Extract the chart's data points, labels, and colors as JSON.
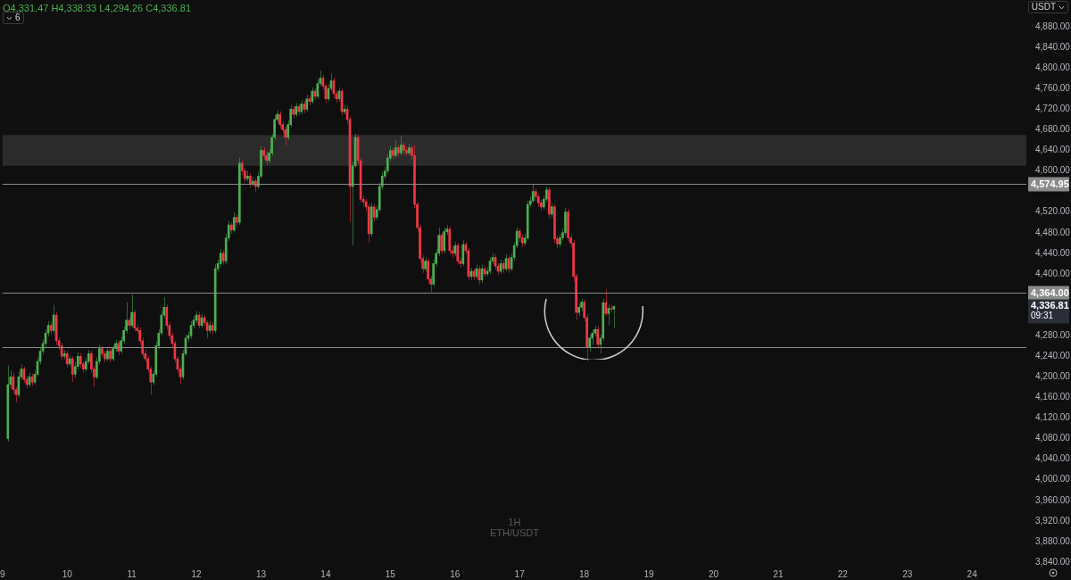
{
  "chart_data": {
    "type": "candlestick",
    "title": "ETH/USDT",
    "subtitle": "1H",
    "annotations": [
      "O4,331.47 H4,338.33 L4,294.26 C4,336.81",
      "6",
      "USDT",
      "4,336.81",
      "09:31"
    ],
    "colors": [
      "#4caf50",
      "#4caf50",
      "#f23645",
      "#f23645",
      "#4caf50",
      "#4caf50",
      "#f23645",
      "#f23645",
      "#4caf50",
      "#f23645",
      "#4caf50",
      "#4caf50",
      "#4caf50",
      "#4caf50",
      "#4caf50",
      "#4caf50",
      "#f23645",
      "#4caf50",
      "#f23645",
      "#f23645",
      "#f23645",
      "#4caf50",
      "#f23645",
      "#4caf50",
      "#f23645",
      "#4caf50",
      "#4caf50",
      "#f23645",
      "#f23645",
      "#4caf50",
      "#4caf50",
      "#f23645",
      "#f23645",
      "#4caf50",
      "#4caf50",
      "#f23645",
      "#f23645",
      "#4caf50",
      "#f23645",
      "#4caf50",
      "#4caf50",
      "#f23645",
      "#4caf50",
      "#4caf50",
      "#4caf50",
      "#f23645",
      "#4caf50",
      "#f23645",
      "#f23645",
      "#f23645",
      "#f23645",
      "#f23645",
      "#f23645",
      "#f23645",
      "#4caf50",
      "#4caf50",
      "#4caf50",
      "#4caf50",
      "#4caf50",
      "#f23645",
      "#f23645",
      "#f23645",
      "#f23645",
      "#f23645",
      "#f23645",
      "#4caf50",
      "#4caf50",
      "#4caf50",
      "#4caf50",
      "#4caf50",
      "#4caf50",
      "#f23645",
      "#4caf50",
      "#f23645",
      "#f23645",
      "#4caf50",
      "#f23645",
      "#4caf50",
      "#4caf50",
      "#4caf50",
      "#f23645",
      "#4caf50",
      "#4caf50",
      "#f23645",
      "#4caf50",
      "#f23645",
      "#4caf50",
      "#f23645",
      "#f23645",
      "#4caf50",
      "#f23645",
      "#4caf50",
      "#f23645",
      "#4caf50",
      "#4caf50",
      "#f23645",
      "#f23645",
      "#4caf50",
      "#4caf50",
      "#4caf50",
      "#4caf50",
      "#f23645",
      "#f23645",
      "#f23645",
      "#4caf50",
      "#4caf50",
      "#f23645",
      "#4caf50",
      "#f23645",
      "#4caf50",
      "#f23645",
      "#4caf50",
      "#f23645",
      "#4caf50",
      "#f23645",
      "#4caf50",
      "#4caf50",
      "#f23645",
      "#f23645",
      "#4caf50",
      "#4caf50",
      "#f23645",
      "#f23645",
      "#4caf50",
      "#f23645",
      "#4caf50",
      "#f23645",
      "#f23645",
      "#4caf50",
      "#4caf50",
      "#f23645",
      "#f23645",
      "#f23645",
      "#f23645",
      "#f23645",
      "#4caf50",
      "#f23645",
      "#4caf50",
      "#4caf50",
      "#4caf50",
      "#4caf50",
      "#4caf50",
      "#4caf50",
      "#f23645",
      "#4caf50",
      "#f23645",
      "#4caf50",
      "#f23645",
      "#f23645",
      "#4caf50",
      "#f23645",
      "#f23645",
      "#f23645",
      "#f23645",
      "#f23645",
      "#4caf50",
      "#f23645",
      "#f23645",
      "#4caf50",
      "#4caf50",
      "#4caf50",
      "#f23645",
      "#4caf50",
      "#4caf50",
      "#f23645",
      "#f23645",
      "#4caf50",
      "#f23645",
      "#f23645",
      "#4caf50",
      "#f23645",
      "#f23645",
      "#4caf50",
      "#f23645",
      "#4caf50",
      "#f23645",
      "#4caf50",
      "#f23645",
      "#4caf50",
      "#4caf50",
      "#4caf50",
      "#f23645",
      "#f23645",
      "#4caf50",
      "#f23645",
      "#4caf50",
      "#f23645",
      "#4caf50",
      "#4caf50",
      "#4caf50",
      "#f23645",
      "#f23645",
      "#4caf50",
      "#4caf50",
      "#4caf50",
      "#4caf50",
      "#f23645",
      "#f23645",
      "#f23645",
      "#4caf50",
      "#4caf50",
      "#f23645",
      "#4caf50",
      "#f23645",
      "#f23645",
      "#4caf50",
      "#4caf50",
      "#4caf50",
      "#f23645",
      "#f23645",
      "#f23645",
      "#f23645",
      "#4caf50",
      "#4caf50",
      "#f23645",
      "#f23645",
      "#4caf50",
      "#4caf50",
      "#4caf50",
      "#f23645",
      "#4caf50",
      "#4caf50",
      "#f23645",
      "#4caf50",
      "#f23645",
      "#4caf50"
    ],
    "xlim": [
      9,
      24.84
    ],
    "xticks": [
      9,
      10,
      11,
      12,
      13,
      14,
      15,
      16,
      17,
      18,
      19,
      20,
      21,
      22,
      23,
      24
    ],
    "ylim": [
      3840,
      4880
    ],
    "yticks": [
      {
        "value": 3840,
        "label": "3,840.00"
      },
      {
        "value": 3880,
        "label": "3,880.00"
      },
      {
        "value": 3920,
        "label": "3,920.00"
      },
      {
        "value": 3960,
        "label": "3,960.00"
      },
      {
        "value": 4000,
        "label": "4,000.00"
      },
      {
        "value": 4040,
        "label": "4,040.00"
      },
      {
        "value": 4080,
        "label": "4,080.00"
      },
      {
        "value": 4120,
        "label": "4,120.00"
      },
      {
        "value": 4160,
        "label": "4,160.00"
      },
      {
        "value": 4200,
        "label": "4,200.00"
      },
      {
        "value": 4240,
        "label": "4,240.00"
      },
      {
        "value": 4280,
        "label": "4,280.00"
      },
      {
        "value": 4400,
        "label": "4,400.00"
      },
      {
        "value": 4440,
        "label": "4,440.00"
      },
      {
        "value": 4480,
        "label": "4,480.00"
      },
      {
        "value": 4520,
        "label": "4,520.00"
      },
      {
        "value": 4600,
        "label": "4,600.00"
      },
      {
        "value": 4640,
        "label": "4,640.00"
      },
      {
        "value": 4680,
        "label": "4,680.00"
      },
      {
        "value": 4720,
        "label": "4,720.00"
      },
      {
        "value": 4760,
        "label": "4,760.00"
      },
      {
        "value": 4800,
        "label": "4,800.00"
      },
      {
        "value": 4840,
        "label": "4,840.00"
      },
      {
        "value": 4880,
        "label": "4,880.00"
      }
    ],
    "bands": [
      {
        "axis": "y",
        "from": 4610,
        "to": 4670,
        "color": "#2b2b2b"
      }
    ],
    "ref_lines": [
      {
        "axis": "y",
        "value": 4574.95,
        "label": "4,574.95",
        "color": "#8a8a8a"
      },
      {
        "axis": "y",
        "value": 4364,
        "label": "4,364.00",
        "color": "#8a8a8a"
      },
      {
        "axis": "y",
        "value": 4257,
        "label": null,
        "color": "#8a8a8a"
      }
    ],
    "x": [
      9.0833,
      9.125,
      9.1667,
      9.2083,
      9.25,
      9.2917,
      9.3333,
      9.375,
      9.4167,
      9.4583,
      9.5,
      9.5417,
      9.5833,
      9.625,
      9.6667,
      9.7083,
      9.75,
      9.7917,
      9.8333,
      9.875,
      9.9167,
      9.9583,
      10,
      10.0417,
      10.0833,
      10.125,
      10.1667,
      10.2083,
      10.25,
      10.2917,
      10.3333,
      10.375,
      10.4167,
      10.4583,
      10.5,
      10.5417,
      10.5833,
      10.625,
      10.6667,
      10.7083,
      10.75,
      10.7917,
      10.8333,
      10.875,
      10.9167,
      10.9583,
      11,
      11.0417,
      11.0833,
      11.125,
      11.1667,
      11.2083,
      11.25,
      11.2917,
      11.3333,
      11.375,
      11.4167,
      11.4583,
      11.5,
      11.5417,
      11.5833,
      11.625,
      11.6667,
      11.7083,
      11.75,
      11.7917,
      11.8333,
      11.875,
      11.9167,
      11.9583,
      12,
      12.0417,
      12.0833,
      12.125,
      12.1667,
      12.2083,
      12.25,
      12.2917,
      12.3333,
      12.375,
      12.4167,
      12.4583,
      12.5,
      12.5417,
      12.5833,
      12.625,
      12.6667,
      12.7083,
      12.75,
      12.7917,
      12.8333,
      12.875,
      12.9167,
      12.9583,
      13,
      13.0417,
      13.0833,
      13.125,
      13.1667,
      13.2083,
      13.25,
      13.2917,
      13.3333,
      13.375,
      13.4167,
      13.4583,
      13.5,
      13.5417,
      13.5833,
      13.625,
      13.6667,
      13.7083,
      13.75,
      13.7917,
      13.8333,
      13.875,
      13.9167,
      13.9583,
      14,
      14.0417,
      14.0833,
      14.125,
      14.1667,
      14.2083,
      14.25,
      14.2917,
      14.3333,
      14.375,
      14.4167,
      14.4583,
      14.5,
      14.5417,
      14.5833,
      14.625,
      14.6667,
      14.7083,
      14.75,
      14.7917,
      14.8333,
      14.875,
      14.9167,
      14.9583,
      15,
      15.0417,
      15.0833,
      15.125,
      15.1667,
      15.2083,
      15.25,
      15.2917,
      15.3333,
      15.375,
      15.4167,
      15.4583,
      15.5,
      15.5417,
      15.5833,
      15.625,
      15.6667,
      15.7083,
      15.75,
      15.7917,
      15.8333,
      15.875,
      15.9167,
      15.9583,
      16,
      16.0417,
      16.0833,
      16.125,
      16.1667,
      16.2083,
      16.25,
      16.2917,
      16.3333,
      16.375,
      16.4167,
      16.4583,
      16.5,
      16.5417,
      16.5833,
      16.625,
      16.6667,
      16.7083,
      16.75,
      16.7917,
      16.8333,
      16.875,
      16.9167,
      16.9583,
      17,
      17.0417,
      17.0833,
      17.125,
      17.1667,
      17.2083,
      17.25,
      17.2917,
      17.3333,
      17.375,
      17.4167,
      17.4583,
      17.5,
      17.5417,
      17.5833,
      17.625,
      17.6667,
      17.7083,
      17.75,
      17.7917,
      17.8333,
      17.875,
      17.9167,
      17.9583,
      18,
      18.0417,
      18.0833,
      18.125,
      18.1667,
      18.2083,
      18.25,
      18.2917,
      18.3333,
      18.375,
      18.4167,
      18.4583
    ],
    "ohlc": [
      [
        4080,
        4222,
        4074,
        4185
      ],
      [
        4185,
        4212,
        4176,
        4200
      ],
      [
        4200,
        4208,
        4168,
        4175
      ],
      [
        4175,
        4180,
        4150,
        4165
      ],
      [
        4165,
        4210,
        4160,
        4200
      ],
      [
        4200,
        4224,
        4195,
        4215
      ],
      [
        4215,
        4220,
        4188,
        4195
      ],
      [
        4195,
        4202,
        4178,
        4185
      ],
      [
        4185,
        4208,
        4180,
        4200
      ],
      [
        4200,
        4206,
        4183,
        4190
      ],
      [
        4190,
        4212,
        4185,
        4205
      ],
      [
        4205,
        4238,
        4200,
        4230
      ],
      [
        4230,
        4258,
        4224,
        4250
      ],
      [
        4250,
        4272,
        4244,
        4265
      ],
      [
        4265,
        4292,
        4258,
        4285
      ],
      [
        4285,
        4308,
        4278,
        4300
      ],
      [
        4300,
        4306,
        4282,
        4290
      ],
      [
        4290,
        4340,
        4285,
        4320
      ],
      [
        4320,
        4326,
        4262,
        4270
      ],
      [
        4270,
        4276,
        4252,
        4260
      ],
      [
        4260,
        4266,
        4232,
        4240
      ],
      [
        4240,
        4252,
        4234,
        4245
      ],
      [
        4245,
        4250,
        4218,
        4225
      ],
      [
        4225,
        4242,
        4220,
        4235
      ],
      [
        4235,
        4240,
        4190,
        4205
      ],
      [
        4205,
        4228,
        4198,
        4220
      ],
      [
        4220,
        4248,
        4214,
        4240
      ],
      [
        4240,
        4246,
        4218,
        4225
      ],
      [
        4225,
        4230,
        4208,
        4215
      ],
      [
        4215,
        4238,
        4210,
        4230
      ],
      [
        4230,
        4252,
        4225,
        4245
      ],
      [
        4245,
        4250,
        4208,
        4215
      ],
      [
        4215,
        4222,
        4180,
        4200
      ],
      [
        4200,
        4238,
        4195,
        4230
      ],
      [
        4230,
        4262,
        4225,
        4255
      ],
      [
        4255,
        4260,
        4238,
        4245
      ],
      [
        4245,
        4250,
        4228,
        4235
      ],
      [
        4235,
        4258,
        4230,
        4250
      ],
      [
        4250,
        4256,
        4228,
        4235
      ],
      [
        4235,
        4262,
        4230,
        4255
      ],
      [
        4255,
        4272,
        4248,
        4265
      ],
      [
        4265,
        4270,
        4242,
        4250
      ],
      [
        4250,
        4278,
        4245,
        4270
      ],
      [
        4270,
        4298,
        4264,
        4290
      ],
      [
        4290,
        4345,
        4285,
        4310
      ],
      [
        4310,
        4316,
        4292,
        4300
      ],
      [
        4300,
        4360,
        4295,
        4325
      ],
      [
        4325,
        4330,
        4288,
        4295
      ],
      [
        4295,
        4302,
        4284,
        4290
      ],
      [
        4290,
        4296,
        4262,
        4270
      ],
      [
        4270,
        4276,
        4238,
        4245
      ],
      [
        4245,
        4252,
        4228,
        4235
      ],
      [
        4235,
        4240,
        4208,
        4215
      ],
      [
        4215,
        4220,
        4165,
        4190
      ],
      [
        4190,
        4212,
        4184,
        4205
      ],
      [
        4205,
        4268,
        4200,
        4260
      ],
      [
        4260,
        4292,
        4254,
        4285
      ],
      [
        4285,
        4328,
        4280,
        4320
      ],
      [
        4320,
        4355,
        4314,
        4335
      ],
      [
        4335,
        4340,
        4292,
        4300
      ],
      [
        4300,
        4306,
        4272,
        4280
      ],
      [
        4280,
        4286,
        4258,
        4265
      ],
      [
        4265,
        4270,
        4228,
        4235
      ],
      [
        4235,
        4240,
        4208,
        4215
      ],
      [
        4215,
        4220,
        4185,
        4200
      ],
      [
        4200,
        4252,
        4195,
        4245
      ],
      [
        4245,
        4282,
        4240,
        4275
      ],
      [
        4275,
        4288,
        4268,
        4280
      ],
      [
        4280,
        4308,
        4274,
        4300
      ],
      [
        4300,
        4318,
        4294,
        4310
      ],
      [
        4310,
        4328,
        4304,
        4320
      ],
      [
        4320,
        4326,
        4294,
        4300
      ],
      [
        4300,
        4322,
        4295,
        4315
      ],
      [
        4315,
        4320,
        4298,
        4305
      ],
      [
        4305,
        4310,
        4275,
        4290
      ],
      [
        4290,
        4308,
        4284,
        4300
      ],
      [
        4300,
        4306,
        4282,
        4290
      ],
      [
        4290,
        4418,
        4285,
        4410
      ],
      [
        4410,
        4428,
        4404,
        4420
      ],
      [
        4420,
        4448,
        4414,
        4440
      ],
      [
        4440,
        4446,
        4418,
        4425
      ],
      [
        4425,
        4478,
        4420,
        4470
      ],
      [
        4470,
        4503,
        4464,
        4495
      ],
      [
        4495,
        4500,
        4478,
        4485
      ],
      [
        4485,
        4520,
        4480,
        4510
      ],
      [
        4510,
        4516,
        4492,
        4500
      ],
      [
        4500,
        4625,
        4495,
        4615
      ],
      [
        4615,
        4620,
        4592,
        4600
      ],
      [
        4600,
        4606,
        4578,
        4585
      ],
      [
        4585,
        4600,
        4580,
        4590
      ],
      [
        4590,
        4596,
        4568,
        4575
      ],
      [
        4575,
        4588,
        4570,
        4580
      ],
      [
        4580,
        4586,
        4560,
        4570
      ],
      [
        4570,
        4598,
        4565,
        4590
      ],
      [
        4590,
        4648,
        4585,
        4640
      ],
      [
        4640,
        4646,
        4622,
        4630
      ],
      [
        4630,
        4636,
        4612,
        4620
      ],
      [
        4620,
        4642,
        4615,
        4635
      ],
      [
        4635,
        4672,
        4630,
        4665
      ],
      [
        4665,
        4708,
        4660,
        4700
      ],
      [
        4700,
        4718,
        4694,
        4710
      ],
      [
        4710,
        4716,
        4682,
        4690
      ],
      [
        4690,
        4696,
        4672,
        4680
      ],
      [
        4680,
        4686,
        4650,
        4665
      ],
      [
        4665,
        4698,
        4660,
        4690
      ],
      [
        4690,
        4728,
        4685,
        4720
      ],
      [
        4720,
        4726,
        4702,
        4710
      ],
      [
        4710,
        4732,
        4705,
        4725
      ],
      [
        4725,
        4730,
        4708,
        4715
      ],
      [
        4715,
        4738,
        4710,
        4730
      ],
      [
        4730,
        4736,
        4712,
        4720
      ],
      [
        4720,
        4748,
        4715,
        4740
      ],
      [
        4740,
        4746,
        4728,
        4735
      ],
      [
        4735,
        4762,
        4730,
        4755
      ],
      [
        4755,
        4760,
        4738,
        4745
      ],
      [
        4745,
        4778,
        4740,
        4770
      ],
      [
        4770,
        4795,
        4765,
        4780
      ],
      [
        4780,
        4786,
        4758,
        4765
      ],
      [
        4765,
        4770,
        4732,
        4740
      ],
      [
        4740,
        4768,
        4735,
        4760
      ],
      [
        4760,
        4790,
        4755,
        4775
      ],
      [
        4775,
        4780,
        4742,
        4750
      ],
      [
        4750,
        4756,
        4732,
        4740
      ],
      [
        4740,
        4762,
        4735,
        4755
      ],
      [
        4755,
        4760,
        4708,
        4715
      ],
      [
        4715,
        4728,
        4710,
        4720
      ],
      [
        4720,
        4726,
        4692,
        4700
      ],
      [
        4700,
        4706,
        4500,
        4570
      ],
      [
        4570,
        4618,
        4455,
        4610
      ],
      [
        4610,
        4672,
        4605,
        4665
      ],
      [
        4665,
        4670,
        4612,
        4620
      ],
      [
        4620,
        4626,
        4538,
        4545
      ],
      [
        4545,
        4552,
        4532,
        4540
      ],
      [
        4540,
        4546,
        4522,
        4530
      ],
      [
        4530,
        4536,
        4460,
        4478
      ],
      [
        4478,
        4538,
        4472,
        4530
      ],
      [
        4530,
        4536,
        4502,
        4510
      ],
      [
        4510,
        4532,
        4505,
        4525
      ],
      [
        4525,
        4578,
        4520,
        4570
      ],
      [
        4570,
        4598,
        4565,
        4590
      ],
      [
        4590,
        4608,
        4584,
        4600
      ],
      [
        4600,
        4632,
        4595,
        4625
      ],
      [
        4625,
        4648,
        4620,
        4640
      ],
      [
        4640,
        4646,
        4622,
        4630
      ],
      [
        4630,
        4660,
        4625,
        4645
      ],
      [
        4645,
        4650,
        4628,
        4635
      ],
      [
        4635,
        4668,
        4630,
        4650
      ],
      [
        4650,
        4656,
        4632,
        4640
      ],
      [
        4640,
        4646,
        4628,
        4635
      ],
      [
        4635,
        4652,
        4630,
        4645
      ],
      [
        4645,
        4650,
        4622,
        4630
      ],
      [
        4630,
        4650,
        4528,
        4535
      ],
      [
        4535,
        4540,
        4482,
        4490
      ],
      [
        4490,
        4496,
        4422,
        4430
      ],
      [
        4430,
        4436,
        4402,
        4410
      ],
      [
        4410,
        4432,
        4405,
        4425
      ],
      [
        4425,
        4430,
        4382,
        4390
      ],
      [
        4390,
        4396,
        4365,
        4380
      ],
      [
        4380,
        4428,
        4375,
        4420
      ],
      [
        4420,
        4448,
        4414,
        4440
      ],
      [
        4440,
        4490,
        4435,
        4475
      ],
      [
        4475,
        4480,
        4438,
        4445
      ],
      [
        4445,
        4490,
        4440,
        4482
      ],
      [
        4482,
        4495,
        4476,
        4487
      ],
      [
        4487,
        4492,
        4438,
        4445
      ],
      [
        4445,
        4452,
        4432,
        4440
      ],
      [
        4440,
        4462,
        4434,
        4455
      ],
      [
        4455,
        4460,
        4418,
        4425
      ],
      [
        4425,
        4432,
        4412,
        4420
      ],
      [
        4420,
        4465,
        4415,
        4457
      ],
      [
        4457,
        4462,
        4438,
        4445
      ],
      [
        4445,
        4450,
        4388,
        4395
      ],
      [
        4395,
        4412,
        4388,
        4405
      ],
      [
        4405,
        4410,
        4388,
        4395
      ],
      [
        4395,
        4418,
        4390,
        4410
      ],
      [
        4410,
        4416,
        4380,
        4388
      ],
      [
        4388,
        4418,
        4382,
        4410
      ],
      [
        4410,
        4416,
        4394,
        4400
      ],
      [
        4400,
        4412,
        4395,
        4405
      ],
      [
        4405,
        4432,
        4400,
        4425
      ],
      [
        4425,
        4440,
        4420,
        4432
      ],
      [
        4432,
        4438,
        4408,
        4415
      ],
      [
        4415,
        4420,
        4398,
        4405
      ],
      [
        4405,
        4428,
        4400,
        4420
      ],
      [
        4420,
        4426,
        4402,
        4410
      ],
      [
        4410,
        4438,
        4405,
        4430
      ],
      [
        4430,
        4436,
        4402,
        4410
      ],
      [
        4410,
        4440,
        4405,
        4432
      ],
      [
        4432,
        4462,
        4426,
        4455
      ],
      [
        4455,
        4490,
        4450,
        4483
      ],
      [
        4483,
        4488,
        4462,
        4470
      ],
      [
        4470,
        4476,
        4452,
        4460
      ],
      [
        4460,
        4478,
        4455,
        4470
      ],
      [
        4470,
        4542,
        4465,
        4535
      ],
      [
        4535,
        4550,
        4530,
        4542
      ],
      [
        4542,
        4575,
        4538,
        4560
      ],
      [
        4560,
        4566,
        4542,
        4550
      ],
      [
        4550,
        4556,
        4530,
        4538
      ],
      [
        4538,
        4544,
        4522,
        4530
      ],
      [
        4530,
        4552,
        4525,
        4545
      ],
      [
        4545,
        4570,
        4540,
        4563
      ],
      [
        4563,
        4568,
        4508,
        4516
      ],
      [
        4516,
        4538,
        4510,
        4530
      ],
      [
        4530,
        4536,
        4460,
        4468
      ],
      [
        4468,
        4474,
        4450,
        4458
      ],
      [
        4458,
        4478,
        4452,
        4470
      ],
      [
        4470,
        4488,
        4465,
        4480
      ],
      [
        4480,
        4528,
        4475,
        4520
      ],
      [
        4520,
        4526,
        4462,
        4470
      ],
      [
        4470,
        4476,
        4452,
        4460
      ],
      [
        4460,
        4466,
        4385,
        4395
      ],
      [
        4395,
        4400,
        4310,
        4325
      ],
      [
        4325,
        4342,
        4318,
        4335
      ],
      [
        4335,
        4352,
        4328,
        4345
      ],
      [
        4345,
        4350,
        4308,
        4315
      ],
      [
        4315,
        4322,
        4230,
        4257
      ],
      [
        4257,
        4282,
        4250,
        4275
      ],
      [
        4275,
        4292,
        4262,
        4285
      ],
      [
        4285,
        4300,
        4278,
        4292
      ],
      [
        4292,
        4298,
        4255,
        4263
      ],
      [
        4263,
        4282,
        4245,
        4275
      ],
      [
        4275,
        4352,
        4270,
        4344
      ],
      [
        4344,
        4370,
        4318,
        4323
      ],
      [
        4323,
        4340,
        4300,
        4333
      ],
      [
        4333,
        4340,
        4325,
        4331.47
      ],
      [
        4331.47,
        4338.33,
        4294.26,
        4336.81
      ]
    ]
  }
}
